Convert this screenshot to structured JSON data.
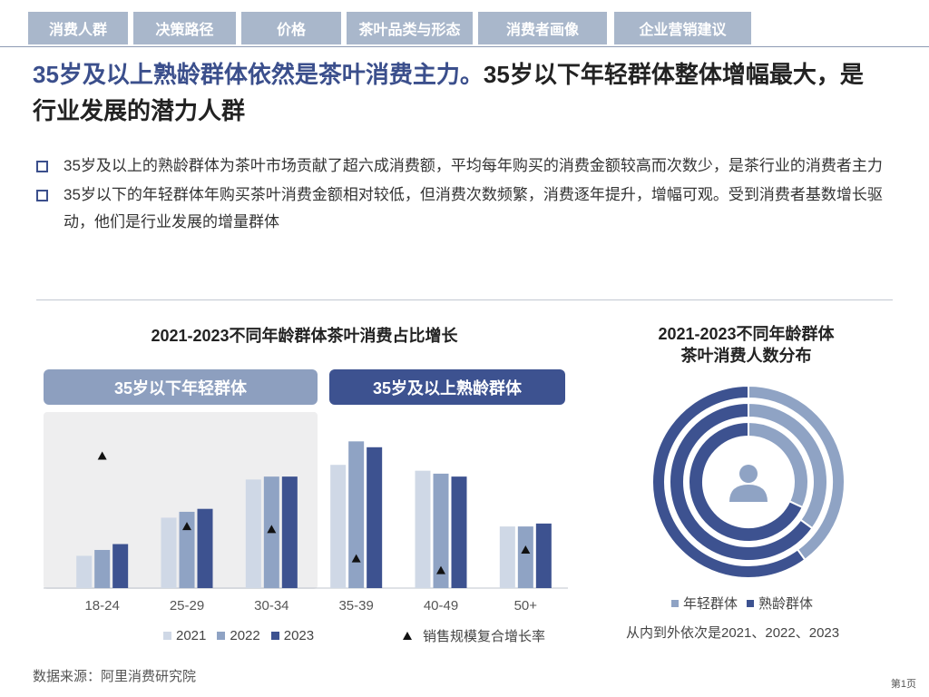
{
  "nav": {
    "tabs": [
      {
        "label": "消费人群",
        "active": true
      },
      {
        "label": "决策路径",
        "active": false
      },
      {
        "label": "价格",
        "active": false
      },
      {
        "label": "茶叶品类与形态",
        "active": false
      },
      {
        "label": "消费者画像",
        "active": false
      },
      {
        "label": "企业营销建议",
        "active": false
      }
    ]
  },
  "headline": {
    "accent": "35岁及以上熟龄群体依然是茶叶消费主力。",
    "rest": "35岁以下年轻群体整体增幅最大，是行业发展的潜力人群"
  },
  "bullets": [
    "35岁及以上的熟龄群体为茶叶市场贡献了超六成消费额，平均每年购买的消费金额较高而次数少，是茶行业的消费者主力",
    "35岁以下的年轻群体年购买茶叶消费金额相对较低，但消费次数频繁，消费逐年提升，增幅可观。受到消费者基数增长驱动，他们是行业发展的增量群体"
  ],
  "colors": {
    "primary": "#3b4f8c",
    "y2021": "#cfd8e6",
    "y2022": "#8fa3c4",
    "y2023": "#3d5290",
    "young": "#8fa3c4",
    "mature": "#3d5290"
  },
  "chart1": {
    "title": "2021-2023不同年龄群体茶叶消费占比增长",
    "group_young": "35岁以下年轻群体",
    "group_mature": "35岁及以上熟龄群体",
    "cagr_legend": "销售规模复合增长率"
  },
  "chart2": {
    "title_line1": "2021-2023不同年龄群体",
    "title_line2": "茶叶消费人数分布",
    "note": "从内到外依次是2021、2022、2023"
  },
  "chart_data": [
    {
      "type": "bar",
      "categories": [
        "18-24",
        "25-29",
        "30-34",
        "35-39",
        "40-49",
        "50+"
      ],
      "ylim": [
        0,
        30
      ],
      "series": [
        {
          "name": "2021",
          "values": [
            5.5,
            12.0,
            18.5,
            21.0,
            20.0,
            10.5
          ]
        },
        {
          "name": "2022",
          "values": [
            6.5,
            13.0,
            19.0,
            25.0,
            19.5,
            10.5
          ]
        },
        {
          "name": "2023",
          "values": [
            7.5,
            13.5,
            19.0,
            24.0,
            19.0,
            11.0
          ]
        }
      ],
      "cagr_markers": [
        22.5,
        10.5,
        10.0,
        5.0,
        3.0,
        6.5
      ],
      "cagr_name": "销售规模复合增长率",
      "legend": "bottom"
    },
    {
      "type": "pie",
      "variant": "nested-donut",
      "labels": [
        "年轻群体",
        "熟龄群体"
      ],
      "rings": [
        {
          "year": "2021",
          "values": [
            32,
            68
          ]
        },
        {
          "year": "2022",
          "values": [
            35,
            65
          ]
        },
        {
          "year": "2023",
          "values": [
            40,
            60
          ]
        }
      ],
      "center_icon": "user-icon"
    }
  ],
  "source": "数据来源：阿里消费研究院",
  "page": "第1页"
}
